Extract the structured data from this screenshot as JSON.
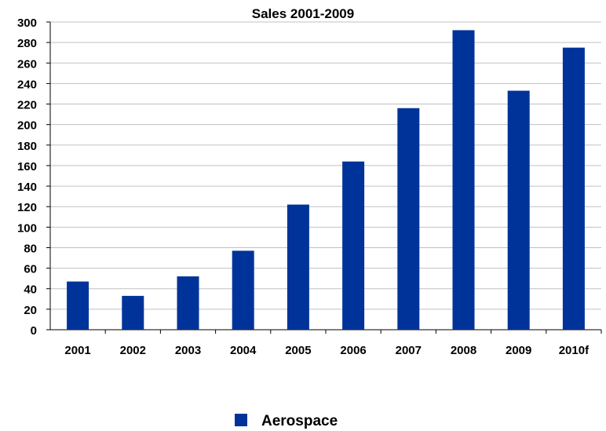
{
  "chart_data": {
    "type": "bar",
    "title": "Sales 2001-2009",
    "xlabel": "",
    "ylabel": "",
    "categories": [
      "2001",
      "2002",
      "2003",
      "2004",
      "2005",
      "2006",
      "2007",
      "2008",
      "2009",
      "2010f"
    ],
    "series": [
      {
        "name": "Aerospace",
        "color": "#003399",
        "values": [
          47,
          33,
          52,
          77,
          122,
          164,
          216,
          292,
          233,
          275
        ]
      }
    ],
    "ylim": [
      0,
      300
    ],
    "yticks": [
      0,
      20,
      40,
      60,
      80,
      100,
      120,
      140,
      160,
      180,
      200,
      220,
      240,
      260,
      280,
      300
    ],
    "grid": true,
    "legend_position": "bottom-center"
  }
}
